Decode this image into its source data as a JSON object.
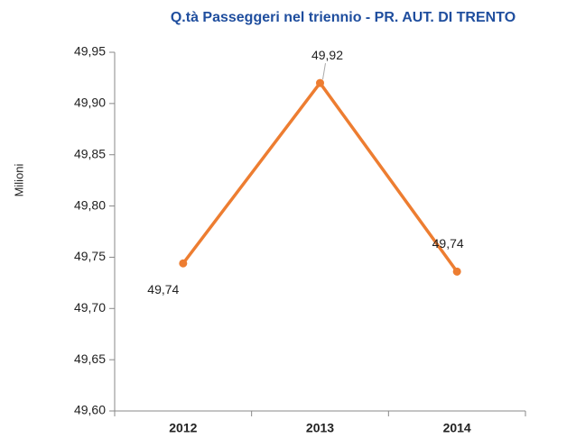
{
  "chart_data": {
    "type": "line",
    "title": "Q.tà Passeggeri nel triennio - PR. AUT. DI TRENTO",
    "y_label": "Milioni",
    "categories": [
      "2012",
      "2013",
      "2014"
    ],
    "series": [
      {
        "name": "Passeggeri",
        "color": "#ed7d31",
        "values": [
          49.744,
          49.92,
          49.736
        ],
        "value_labels": [
          "49,74",
          "49,92",
          "49,74"
        ]
      }
    ],
    "ylim": [
      49.6,
      49.95
    ],
    "yticks": [
      {
        "value": 49.6,
        "label": "49,60"
      },
      {
        "value": 49.65,
        "label": "49,65"
      },
      {
        "value": 49.7,
        "label": "49,70"
      },
      {
        "value": 49.75,
        "label": "49,75"
      },
      {
        "value": 49.8,
        "label": "49,80"
      },
      {
        "value": 49.85,
        "label": "49,85"
      },
      {
        "value": 49.9,
        "label": "49,90"
      },
      {
        "value": 49.95,
        "label": "49,95"
      }
    ],
    "grid": false
  }
}
